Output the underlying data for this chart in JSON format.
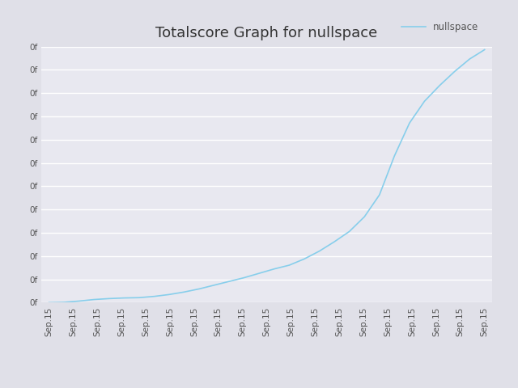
{
  "title": "Totalscore Graph for nullspace",
  "legend_label": "nullspace",
  "line_color": "#87CEEB",
  "bg_color": "#E0E0E8",
  "plot_bg_color": "#E8E8F0",
  "grid_color": "#ffffff",
  "title_fontsize": 13,
  "tick_fontsize": 7.5,
  "x_tick_label": "Sep.15",
  "num_xticks": 19,
  "y_values": [
    0,
    1,
    5,
    10,
    13,
    15,
    16,
    20,
    26,
    34,
    44,
    56,
    68,
    80,
    94,
    108,
    120,
    140,
    165,
    195,
    228,
    275,
    345,
    470,
    575,
    645,
    695,
    740,
    780,
    810
  ],
  "num_yticks": 12,
  "ylim_min": 0,
  "ylim_max": 820,
  "legend_line_color": "#87CEEB"
}
